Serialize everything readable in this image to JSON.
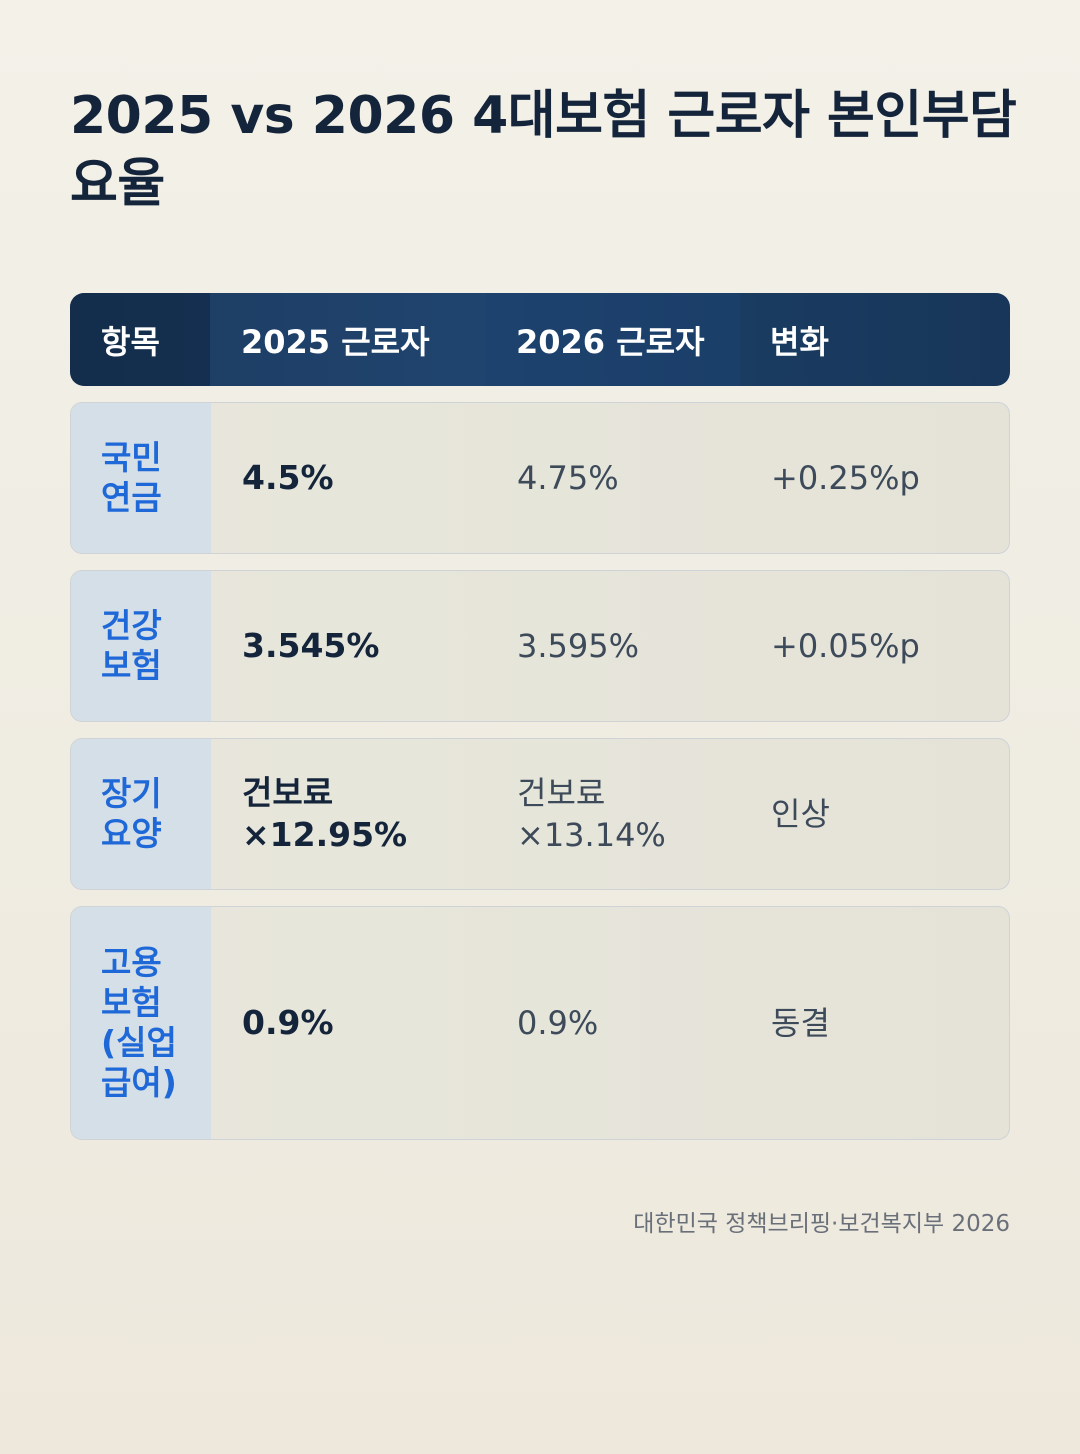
{
  "title": "2025 vs 2026 4대보험 근로자 본인부담 요율",
  "table": {
    "headers": [
      "항목",
      "2025 근로자",
      "2026 근로자",
      "변화"
    ],
    "rows": [
      {
        "item": "국민\n연금",
        "rate_2025": "4.5%",
        "rate_2026": "4.75%",
        "change": "+0.25%p"
      },
      {
        "item": "건강\n보험",
        "rate_2025": "3.545%",
        "rate_2026": "3.595%",
        "change": "+0.05%p"
      },
      {
        "item": "장기\n요양",
        "rate_2025": "건보료\n×12.95%",
        "rate_2026": "건보료\n×13.14%",
        "change": "인상"
      },
      {
        "item": "고용\n보험\n(실업\n급여)",
        "rate_2025": "0.9%",
        "rate_2026": "0.9%",
        "change": "동결"
      }
    ]
  },
  "footer": "대한민국 정책브리핑·보건복지부 2026"
}
